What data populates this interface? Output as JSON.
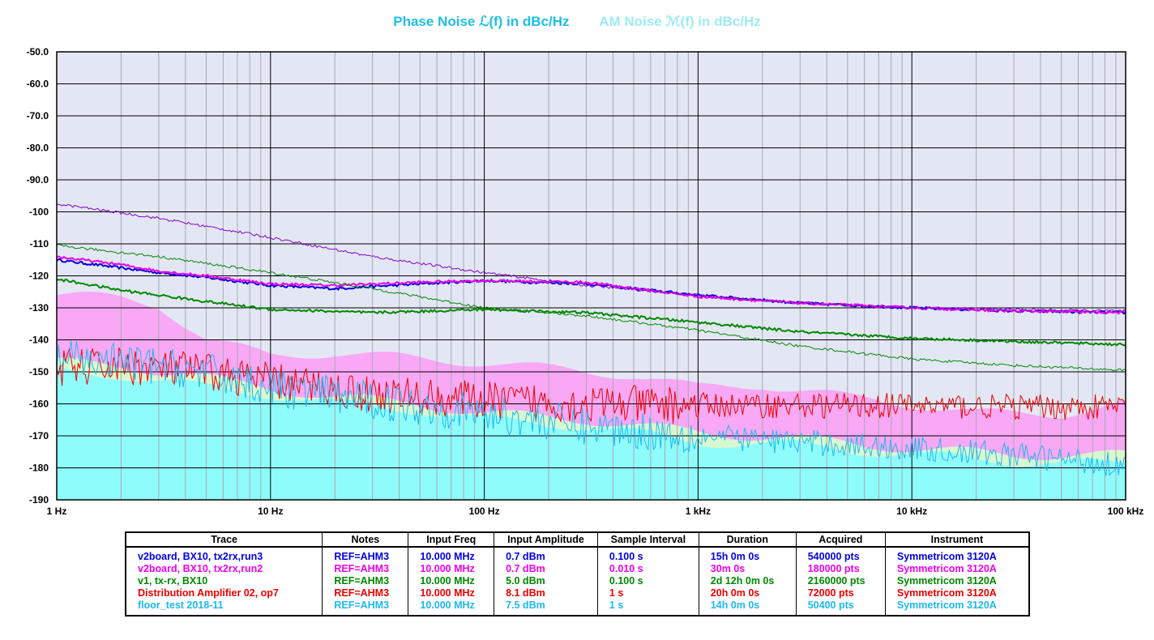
{
  "titles": {
    "phase": "Phase Noise ℒ(f) in dBc/Hz",
    "am": "AM Noise ℳ(f) in dBc/Hz"
  },
  "colors": {
    "phase_title": "#1ec0e6",
    "am_title": "#9cecf4",
    "plot_bg": "#e3e7f4",
    "grid_major": "#000000",
    "grid_minor": "#a8a8b4"
  },
  "chart_data": {
    "type": "line",
    "x_scale": "log",
    "xlim": [
      1,
      100000
    ],
    "ylim": [
      -190,
      -50
    ],
    "ytick_values": [
      -50,
      -60,
      -70,
      -80,
      -90,
      -100,
      -110,
      -120,
      -130,
      -140,
      -150,
      -160,
      -170,
      -180,
      -190
    ],
    "ytick_labels": [
      "-50.0",
      "-60.0",
      "-70.0",
      "-80.0",
      "-90.0",
      "-100",
      "-110",
      "-120",
      "-130",
      "-140",
      "-150",
      "-160",
      "-170",
      "-180",
      "-190"
    ],
    "xtick_values": [
      1,
      10,
      100,
      1000,
      10000,
      100000
    ],
    "xtick_labels": [
      "1 Hz",
      "10 Hz",
      "100 Hz",
      "1 kHz",
      "10 kHz",
      "100 kHz"
    ],
    "grid": true,
    "am_bands": [
      {
        "color": "#f8a8f4",
        "x": [
          1,
          2,
          3,
          5,
          10,
          20,
          50,
          100,
          200,
          500,
          1000,
          2000,
          5000,
          10000,
          20000,
          50000,
          100000
        ],
        "y": [
          -126,
          -127,
          -129,
          -140,
          -145,
          -144,
          -146,
          -147,
          -149,
          -151,
          -155,
          -154,
          -158,
          -160,
          -163,
          -163,
          -160
        ]
      },
      {
        "color": "#d8f8d0",
        "x": [
          1,
          2,
          5,
          10,
          20,
          50,
          100,
          300,
          1000,
          3000,
          10000,
          30000,
          100000
        ],
        "y": [
          -147,
          -148,
          -152,
          -155,
          -158,
          -160,
          -163,
          -165,
          -169,
          -171,
          -174,
          -176,
          -176
        ]
      },
      {
        "color": "#8ffcfc",
        "x": [
          1,
          2,
          5,
          10,
          20,
          50,
          100,
          300,
          1000,
          3000,
          10000,
          30000,
          100000
        ],
        "y": [
          -150,
          -151,
          -155,
          -157,
          -160,
          -162,
          -165,
          -167,
          -172,
          -173,
          -176,
          -178,
          -179
        ]
      }
    ],
    "series": [
      {
        "color": "#0000dd",
        "width": 2,
        "x": [
          1,
          2,
          3,
          5,
          10,
          20,
          50,
          100,
          300,
          1000,
          3000,
          10000,
          30000,
          100000
        ],
        "y": [
          -115,
          -117.5,
          -119,
          -120.5,
          -123,
          -124,
          -122.5,
          -121.5,
          -122.5,
          -126,
          -128.5,
          -130,
          -131,
          -131.5
        ]
      },
      {
        "color": "#ee00ee",
        "width": 2,
        "x": [
          1,
          2,
          3,
          5,
          10,
          20,
          50,
          100,
          300,
          1000,
          3000,
          10000,
          30000,
          100000
        ],
        "y": [
          -114,
          -116.5,
          -118.5,
          -120,
          -122.5,
          -123,
          -122,
          -121.5,
          -122,
          -126.5,
          -128.5,
          -130,
          -131,
          -131.5
        ]
      },
      {
        "color": "#8800cc",
        "width": 1,
        "x": [
          1,
          3,
          10,
          30,
          100,
          300,
          1000,
          3000,
          10000,
          30000,
          100000
        ],
        "y": [
          -97.5,
          -102,
          -108,
          -114,
          -119,
          -123,
          -126,
          -128.5,
          -130,
          -130.5,
          -131
        ]
      },
      {
        "color": "#008800",
        "width": 1,
        "x": [
          1,
          3,
          10,
          30,
          100,
          300,
          1000,
          3000,
          10000,
          30000,
          100000
        ],
        "y": [
          -110.5,
          -114,
          -119,
          -124,
          -130,
          -132.5,
          -137,
          -142,
          -146,
          -148,
          -149.5
        ]
      },
      {
        "color": "#008800",
        "width": 2,
        "x": [
          1,
          2,
          5,
          10,
          30,
          100,
          300,
          1000,
          3000,
          10000,
          30000,
          100000
        ],
        "y": [
          -121,
          -124.5,
          -128,
          -130.5,
          -131.5,
          -130.5,
          -131.5,
          -134.5,
          -137.5,
          -139.5,
          -140.5,
          -141.5
        ]
      },
      {
        "color": "#ee0000",
        "width": 1,
        "x": [
          1,
          2,
          5,
          10,
          30,
          100,
          300,
          1000,
          3000,
          10000,
          30000,
          100000
        ],
        "y": [
          -149,
          -148,
          -150,
          -153,
          -157,
          -159,
          -160,
          -160.5,
          -160.5,
          -160.5,
          -161,
          -161
        ]
      },
      {
        "color": "#1cb8f0",
        "width": 1,
        "x": [
          1,
          2,
          5,
          10,
          30,
          100,
          300,
          1000,
          3000,
          10000,
          30000,
          100000
        ],
        "y": [
          -146,
          -147,
          -150,
          -155,
          -159,
          -163,
          -167,
          -170,
          -172,
          -174,
          -176,
          -179
        ]
      }
    ]
  },
  "legend": {
    "headers": [
      "Trace",
      "Notes",
      "Input Freq",
      "Input Amplitude",
      "Sample Interval",
      "Duration",
      "Acquired",
      "Instrument"
    ],
    "rows": [
      {
        "color": "#0000dd",
        "trace": "v2board, BX10, tx2rx,run3",
        "notes": "REF=AHM3",
        "freq": "10.000 MHz",
        "amp": "0.7 dBm",
        "interval": "0.100 s",
        "duration": "15h 0m 0s",
        "acquired": "540000 pts",
        "instrument": "Symmetricom 3120A"
      },
      {
        "color": "#ee00ee",
        "trace": "v2board, BX10, tx2rx,run2",
        "notes": "REF=AHM3",
        "freq": "10.000 MHz",
        "amp": "0.7 dBm",
        "interval": "0.010 s",
        "duration": "30m 0s",
        "acquired": "180000 pts",
        "instrument": "Symmetricom 3120A"
      },
      {
        "color": "#008800",
        "trace": "v1, tx-rx, BX10",
        "notes": "REF=AHM3",
        "freq": "10.000 MHz",
        "amp": "5.0 dBm",
        "interval": "0.100 s",
        "duration": "2d 12h 0m 0s",
        "acquired": "2160000 pts",
        "instrument": "Symmetricom 3120A"
      },
      {
        "color": "#ee0000",
        "trace": "Distribution Amplifier 02, op7",
        "notes": "REF=AHM3",
        "freq": "10.000 MHz",
        "amp": "8.1 dBm",
        "interval": "1 s",
        "duration": "20h 0m 0s",
        "acquired": "72000 pts",
        "instrument": "Symmetricom 3120A"
      },
      {
        "color": "#1cb8f0",
        "trace": "floor_test 2018-11",
        "notes": "REF=AHM3",
        "freq": "10.000 MHz",
        "amp": "7.5 dBm",
        "interval": "1 s",
        "duration": "14h 0m 0s",
        "acquired": "50400 pts",
        "instrument": "Symmetricom 3120A"
      }
    ]
  }
}
